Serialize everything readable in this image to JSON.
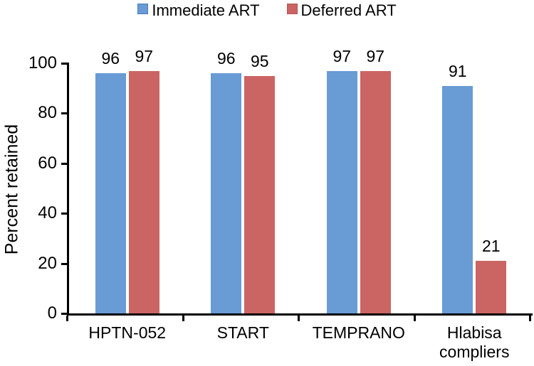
{
  "chart_data": {
    "type": "bar",
    "categories": [
      "HPTN-052",
      "START",
      "TEMPRANO",
      "Hlabisa compliers"
    ],
    "series": [
      {
        "name": "Immediate ART",
        "color": "#699BD5",
        "border_color": "#4A7EBB",
        "values": [
          96,
          96,
          97,
          91
        ]
      },
      {
        "name": "Deferred ART",
        "color": "#CB6563",
        "border_color": "#B35552",
        "values": [
          97,
          95,
          97,
          21
        ]
      }
    ],
    "title": "",
    "xlabel": "",
    "ylabel": "Percent retained",
    "yticks": [
      0,
      20,
      40,
      60,
      80,
      100
    ],
    "ylim": [
      0,
      100
    ],
    "grid": false,
    "legend_position": "top",
    "axis_color": "#000000",
    "background_color": "#FFFFFF"
  }
}
